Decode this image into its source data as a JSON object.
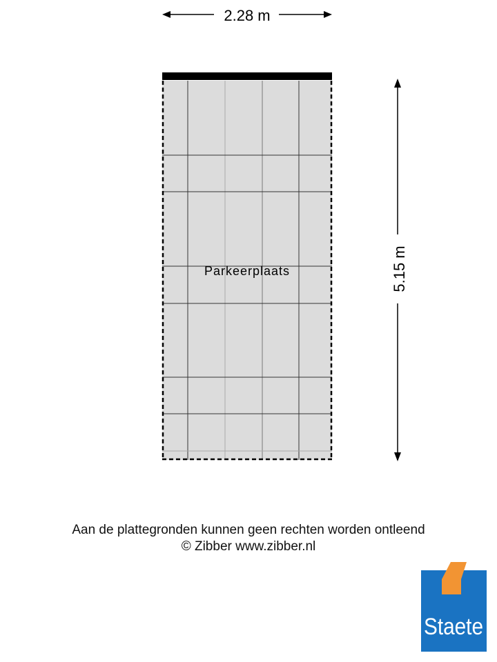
{
  "plan": {
    "width_label": "2.28 m",
    "height_label": "5.15 m",
    "room_label": "Parkeerplaats",
    "fill_color": "#dcdcdc"
  },
  "footer": {
    "disclaimer": "Aan de plattegronden kunnen geen rechten worden ontleend",
    "copyright": "© Zibber www.zibber.nl"
  },
  "logo": {
    "text": "Staete",
    "blue": "#1a73c2",
    "orange": "#f29433"
  }
}
